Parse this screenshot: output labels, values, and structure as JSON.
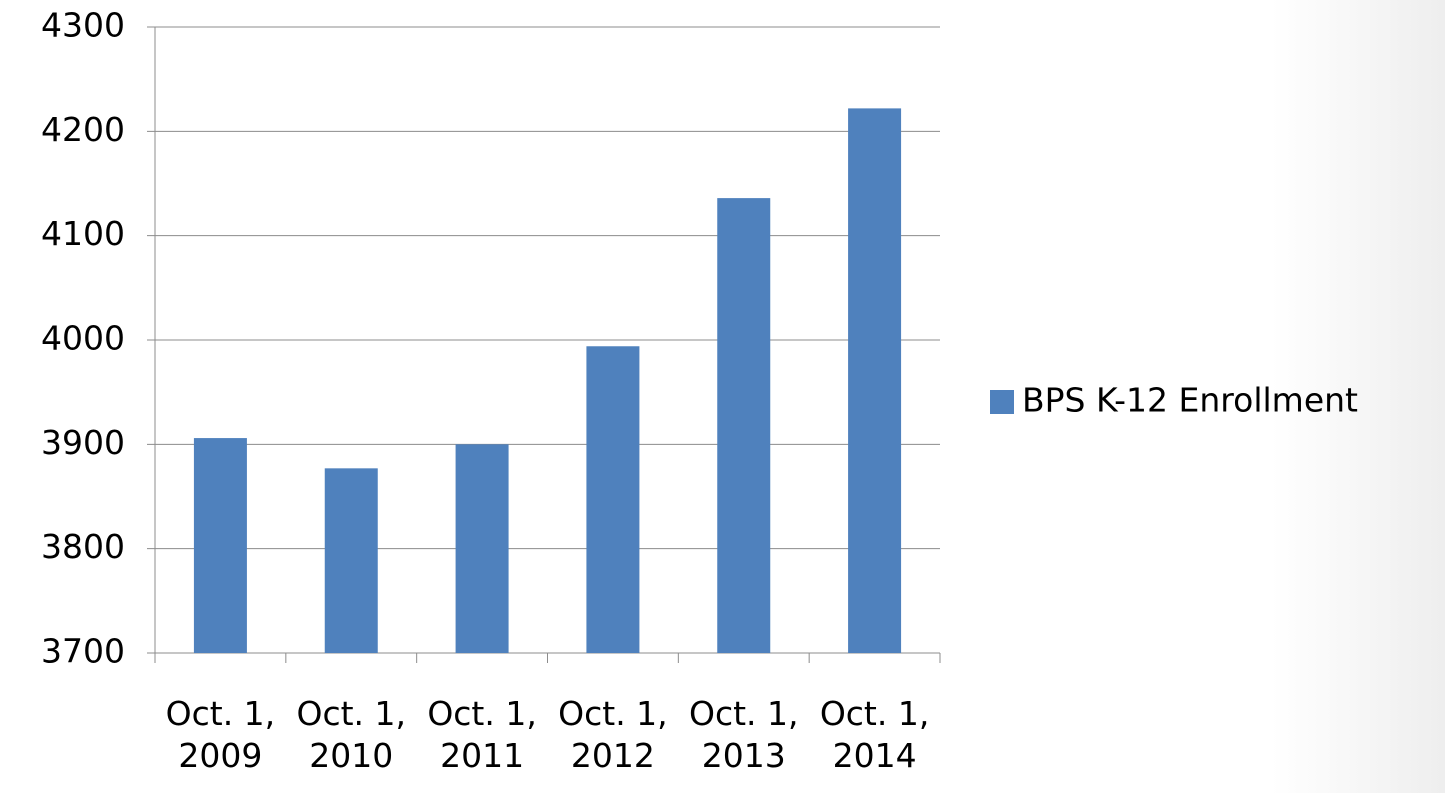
{
  "chart_data": {
    "type": "bar",
    "categories": [
      "Oct. 1, 2009",
      "Oct. 1, 2010",
      "Oct. 1, 2011",
      "Oct. 1, 2012",
      "Oct. 1, 2013",
      "Oct. 1, 2014"
    ],
    "series": [
      {
        "name": "BPS K-12 Enrollment",
        "color": "#4f81bd",
        "values": [
          3906,
          3877,
          3900,
          3994,
          4136,
          4222
        ]
      }
    ],
    "ylim": [
      3700,
      4300
    ],
    "yticks": [
      3700,
      3800,
      3900,
      4000,
      4100,
      4200,
      4300
    ],
    "grid": true,
    "legend": "right"
  }
}
